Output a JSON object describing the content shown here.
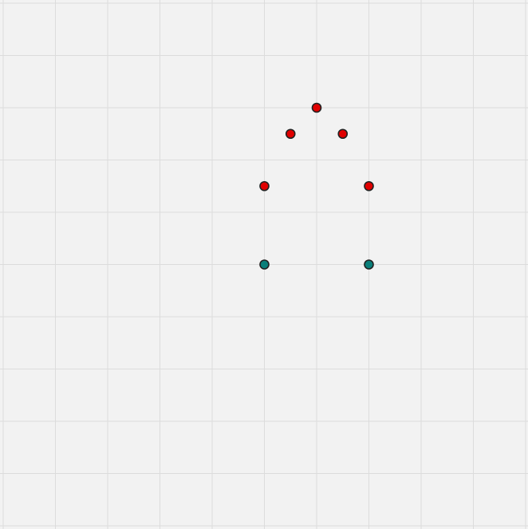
{
  "board": {
    "background_color": "#f2f2f2",
    "grid_line_color": "#dcdcdc",
    "columns": 10,
    "rows": 10
  },
  "dot_colors": {
    "red": "#e00000",
    "teal": "#0a7f7a"
  },
  "dots": [
    {
      "id": "red-1",
      "color": "red",
      "col": 6.0,
      "row": 2.0
    },
    {
      "id": "red-2",
      "color": "red",
      "col": 5.5,
      "row": 2.5
    },
    {
      "id": "red-3",
      "color": "red",
      "col": 6.5,
      "row": 2.5
    },
    {
      "id": "red-4",
      "color": "red",
      "col": 5.0,
      "row": 3.5
    },
    {
      "id": "red-5",
      "color": "red",
      "col": 7.0,
      "row": 3.5
    },
    {
      "id": "teal-1",
      "color": "teal",
      "col": 5.0,
      "row": 5.0
    },
    {
      "id": "teal-2",
      "color": "teal",
      "col": 7.0,
      "row": 5.0
    }
  ]
}
